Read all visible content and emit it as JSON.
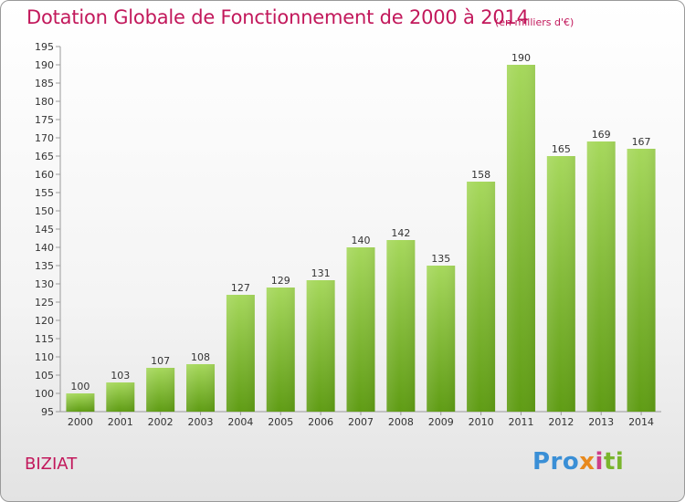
{
  "title": "Dotation Globale de Fonctionnement de 2000 à 2014",
  "unit": "(en milliers d'€)",
  "commune": "BIZIAT",
  "logo": {
    "p1": "Pro",
    "p2": "x",
    "p3": "i",
    "p4": "ti"
  },
  "colors": {
    "accent": "#c2185b",
    "bar_light": "#a6d85c",
    "bar_dark": "#5f9c14"
  },
  "chart_data": {
    "type": "bar",
    "categories": [
      "2000",
      "2001",
      "2002",
      "2003",
      "2004",
      "2005",
      "2006",
      "2007",
      "2008",
      "2009",
      "2010",
      "2011",
      "2012",
      "2013",
      "2014"
    ],
    "values": [
      100,
      103,
      107,
      108,
      127,
      129,
      131,
      140,
      142,
      135,
      158,
      190,
      165,
      169,
      167
    ],
    "ylim": [
      95,
      195
    ],
    "yticks": [
      95,
      100,
      105,
      110,
      115,
      120,
      125,
      130,
      135,
      140,
      145,
      150,
      155,
      160,
      165,
      170,
      175,
      180,
      185,
      190,
      195
    ],
    "grid": false,
    "legend": "none"
  }
}
